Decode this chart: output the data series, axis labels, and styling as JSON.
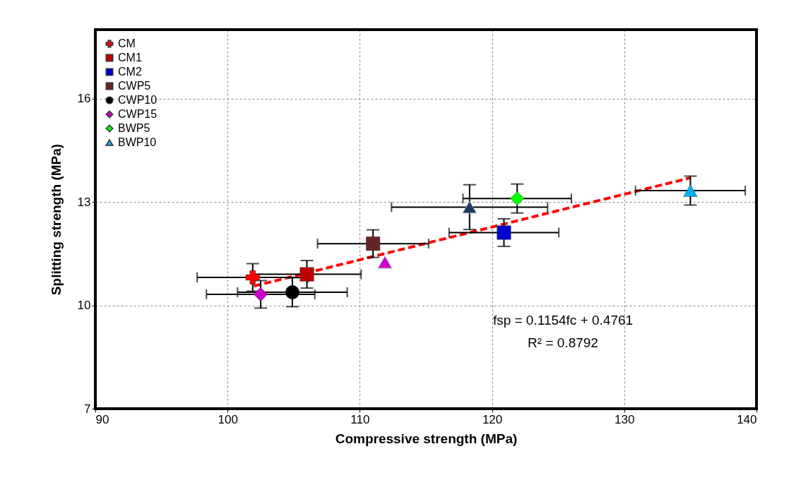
{
  "chart_data": {
    "type": "scatter",
    "xlabel": "Compressive strength (MPa)",
    "ylabel": "Splitting strength (MPa)",
    "xlim": [
      90,
      140
    ],
    "xticks": [
      90,
      100,
      110,
      120,
      130,
      140
    ],
    "ylim": [
      7,
      18
    ],
    "yticks": [
      7,
      10,
      13,
      16
    ],
    "grid": true,
    "legend": "top left",
    "annotations": [
      "fsp = 0.1154fc + 0.4761",
      "R² = 0.8792"
    ],
    "series": [
      {
        "name": "CM",
        "color": "#ff0000",
        "marker": "cross",
        "x": [
          101.9
        ],
        "values": [
          10.81
        ],
        "errors": [
          0.4
        ],
        "xerrors": [
          4.2
        ]
      },
      {
        "name": "CM1",
        "color": "#c00000",
        "marker": "square",
        "x": [
          106.0
        ],
        "values": [
          10.9
        ],
        "errors": [
          0.4
        ],
        "xerrors": [
          4.1
        ]
      },
      {
        "name": "CM2",
        "color": "#0000cc",
        "marker": "square",
        "x": [
          120.9
        ],
        "values": [
          12.11
        ],
        "errors": [
          0.4
        ],
        "xerrors": [
          4.15
        ]
      },
      {
        "name": "CWP5",
        "color": "#632523",
        "marker": "square",
        "x": [
          111.0
        ],
        "values": [
          11.79
        ],
        "errors": [
          0.4
        ],
        "xerrors": [
          4.2
        ]
      },
      {
        "name": "CWP10",
        "color": "#000000",
        "marker": "circle",
        "x": [
          104.9
        ],
        "values": [
          10.38
        ],
        "errors": [
          0.42
        ],
        "xerrors": [
          4.15
        ]
      },
      {
        "name": "CWP15",
        "color": "#cc00cc",
        "marker": "diamond",
        "x": [
          102.5
        ],
        "values": [
          10.32
        ],
        "errors": [
          0.4
        ],
        "xerrors": [
          4.1
        ]
      },
      {
        "name": "BWP5",
        "color": "#00ff00",
        "marker": "diamond",
        "x": [
          121.9
        ],
        "values": [
          13.1
        ],
        "errors": [
          0.42
        ],
        "xerrors": [
          4.1
        ]
      },
      {
        "name": "BWP10",
        "color": "#00b0f0",
        "marker": "triangle",
        "x": [
          135.0
        ],
        "values": [
          13.33
        ],
        "errors": [
          0.42
        ],
        "xerrors": [
          4.15
        ]
      },
      {
        "color": "#1f3864",
        "marker": "triangle",
        "x": [
          118.3
        ],
        "values": [
          12.85
        ],
        "errors": [
          0.65
        ],
        "xerrors": [
          5.9
        ]
      },
      {
        "color": "#cc00cc",
        "marker": "triangle",
        "x": [
          111.9
        ],
        "values": [
          11.25
        ]
      },
      {
        "type": "line",
        "color": "#ff0000",
        "line_style": "dashed",
        "x": [
          102,
          135
        ],
        "values": [
          10.56,
          13.7
        ]
      }
    ]
  }
}
